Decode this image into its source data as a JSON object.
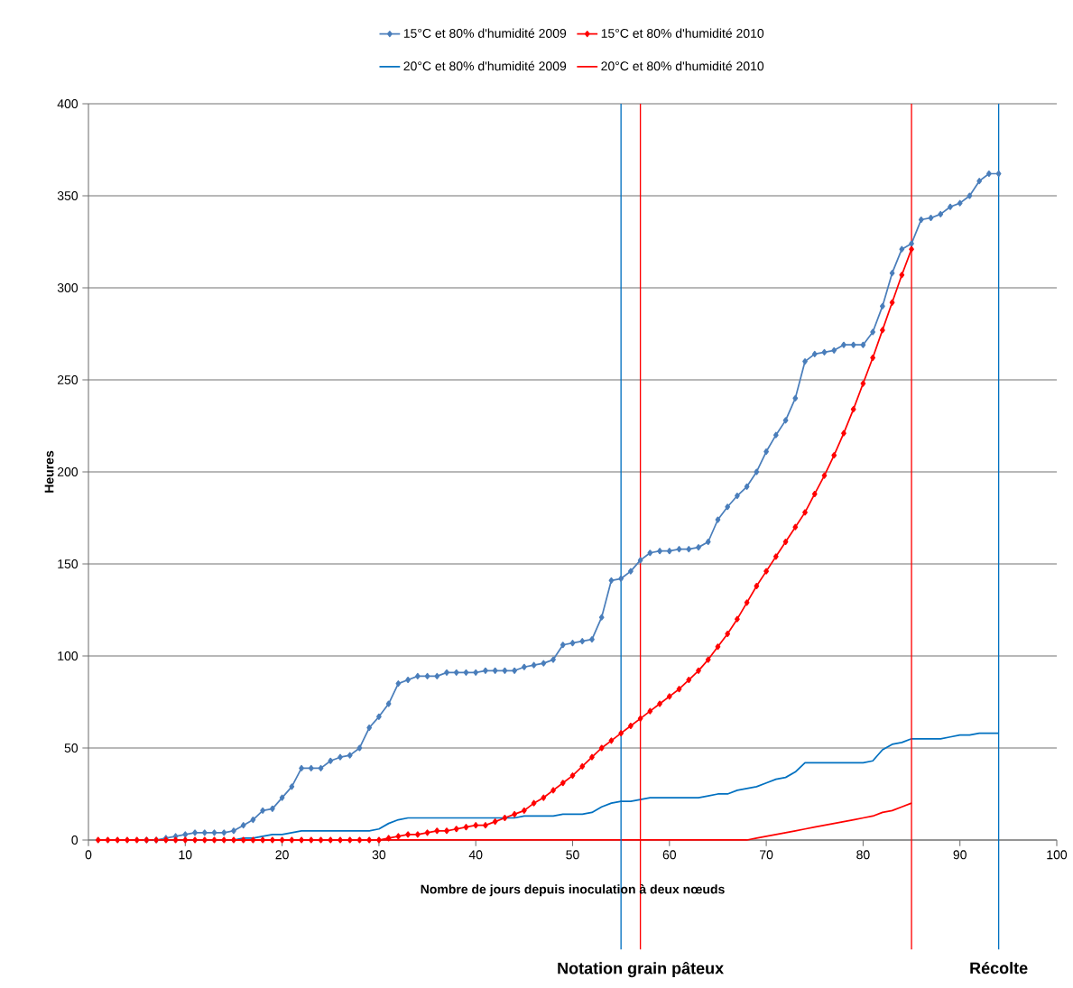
{
  "chart_data": {
    "type": "line",
    "xlabel": "Nombre de jours depuis inoculation à deux nœuds",
    "ylabel": "Heures",
    "x": [
      1,
      2,
      3,
      4,
      5,
      6,
      7,
      8,
      9,
      10,
      11,
      12,
      13,
      14,
      15,
      16,
      17,
      18,
      19,
      20,
      21,
      22,
      23,
      24,
      25,
      26,
      27,
      28,
      29,
      30,
      31,
      32,
      33,
      34,
      35,
      36,
      37,
      38,
      39,
      40,
      41,
      42,
      43,
      44,
      45,
      46,
      47,
      48,
      49,
      50,
      51,
      52,
      53,
      54,
      55,
      56,
      57,
      58,
      59,
      60,
      61,
      62,
      63,
      64,
      65,
      66,
      67,
      68,
      69,
      70,
      71,
      72,
      73,
      74,
      75,
      76,
      77,
      78,
      79,
      80,
      81,
      82,
      83,
      84,
      85,
      86,
      87,
      88,
      89,
      90,
      91,
      92,
      93,
      94
    ],
    "series": [
      {
        "name": "15°C et 80% d'humidité 2009",
        "color": "#4a7ebb",
        "marker": "diamond",
        "values": [
          null,
          null,
          null,
          null,
          null,
          0,
          0,
          1,
          2,
          3,
          4,
          4,
          4,
          4,
          5,
          8,
          11,
          16,
          17,
          23,
          29,
          39,
          39,
          39,
          43,
          45,
          46,
          50,
          61,
          67,
          74,
          85,
          87,
          89,
          89,
          89,
          91,
          91,
          91,
          91,
          92,
          92,
          92,
          92,
          94,
          95,
          96,
          98,
          106,
          107,
          108,
          109,
          121,
          141,
          142,
          146,
          152,
          156,
          157,
          157,
          158,
          158,
          159,
          162,
          174,
          181,
          187,
          192,
          200,
          211,
          220,
          228,
          240,
          260,
          264,
          265,
          266,
          269,
          269,
          269,
          276,
          290,
          308,
          321,
          324,
          337,
          338,
          340,
          344,
          346,
          350,
          358,
          362,
          362
        ]
      },
      {
        "name": "15°C et 80% d'humidité 2010",
        "color": "#ff0000",
        "marker": "diamond",
        "values": [
          0,
          0,
          0,
          0,
          0,
          0,
          0,
          0,
          0,
          0,
          0,
          0,
          0,
          0,
          0,
          0,
          0,
          0,
          0,
          0,
          0,
          0,
          0,
          0,
          0,
          0,
          0,
          0,
          0,
          0,
          1,
          2,
          3,
          3,
          4,
          5,
          5,
          6,
          7,
          8,
          8,
          10,
          12,
          14,
          16,
          20,
          23,
          27,
          31,
          35,
          40,
          45,
          50,
          54,
          58,
          62,
          66,
          70,
          74,
          78,
          82,
          87,
          92,
          98,
          105,
          112,
          120,
          129,
          138,
          146,
          154,
          162,
          170,
          178,
          188,
          198,
          209,
          221,
          234,
          248,
          262,
          277,
          292,
          307,
          321,
          null,
          null,
          null,
          null,
          null,
          null,
          null,
          null,
          null
        ]
      },
      {
        "name": "20°C et 80% d'humidité 2009",
        "color": "#0070c0",
        "marker": "none",
        "values": [
          null,
          null,
          null,
          null,
          null,
          0,
          0,
          0,
          0,
          0,
          0,
          0,
          0,
          0,
          0,
          1,
          1,
          2,
          3,
          3,
          4,
          5,
          5,
          5,
          5,
          5,
          5,
          5,
          5,
          6,
          9,
          11,
          12,
          12,
          12,
          12,
          12,
          12,
          12,
          12,
          12,
          12,
          12,
          12,
          13,
          13,
          13,
          13,
          14,
          14,
          14,
          15,
          18,
          20,
          21,
          21,
          22,
          23,
          23,
          23,
          23,
          23,
          23,
          24,
          25,
          25,
          27,
          28,
          29,
          31,
          33,
          34,
          37,
          42,
          42,
          42,
          42,
          42,
          42,
          42,
          43,
          49,
          52,
          53,
          55,
          55,
          55,
          55,
          56,
          57,
          57,
          58,
          58,
          58
        ]
      },
      {
        "name": "20°C et 80% d'humidité 2010",
        "color": "#ff0000",
        "marker": "none",
        "values": [
          0,
          0,
          0,
          0,
          0,
          0,
          0,
          0,
          0,
          0,
          0,
          0,
          0,
          0,
          0,
          0,
          0,
          0,
          0,
          0,
          0,
          0,
          0,
          0,
          0,
          0,
          0,
          0,
          0,
          0,
          0,
          0,
          0,
          0,
          0,
          0,
          0,
          0,
          0,
          0,
          0,
          0,
          0,
          0,
          0,
          0,
          0,
          0,
          0,
          0,
          0,
          0,
          0,
          0,
          0,
          0,
          0,
          0,
          0,
          0,
          0,
          0,
          0,
          0,
          0,
          0,
          0,
          0,
          1,
          2,
          3,
          4,
          5,
          6,
          7,
          8,
          9,
          10,
          11,
          12,
          13,
          15,
          16,
          18,
          20,
          null,
          null,
          null,
          null,
          null,
          null,
          null,
          null,
          null
        ]
      }
    ],
    "xlim": [
      0,
      100
    ],
    "xticks": [
      0,
      10,
      20,
      30,
      40,
      50,
      60,
      70,
      80,
      90,
      100
    ],
    "ylim": [
      0,
      400
    ],
    "yticks": [
      0,
      50,
      100,
      150,
      200,
      250,
      300,
      350,
      400
    ],
    "grid": "y",
    "legend": "top",
    "ref_lines": [
      {
        "axis": "x",
        "value": 55,
        "color": "#0070c0"
      },
      {
        "axis": "x",
        "value": 57,
        "color": "#ff0000",
        "label": "Notation grain pâteux"
      },
      {
        "axis": "x",
        "value": 85,
        "color": "#ff0000"
      },
      {
        "axis": "x",
        "value": 94,
        "color": "#0070c0",
        "label": "Récolte"
      }
    ]
  }
}
